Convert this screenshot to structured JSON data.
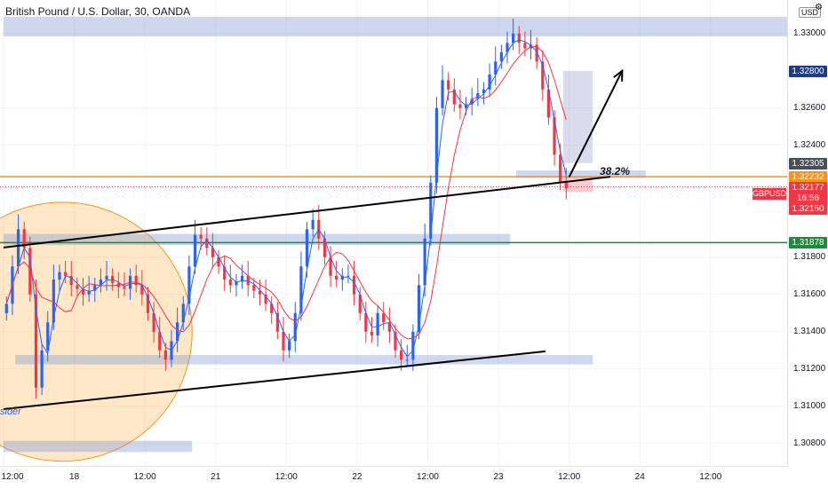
{
  "chart_data": {
    "type": "candlestick",
    "title": "British Pound / U.S. Dollar, 30, OANDA",
    "symbol": "GBPUSD",
    "currency": "USD",
    "price_axis": {
      "ylim": [
        1.3068,
        1.3318
      ],
      "ticks": [
        "1.33000",
        "1.32600",
        "1.32400",
        "1.31800",
        "1.31600",
        "1.31400",
        "1.31200",
        "1.31000",
        "1.30800"
      ]
    },
    "time_axis": {
      "ticks": [
        {
          "label": "12:00",
          "t": 0
        },
        {
          "label": "18",
          "t": 12
        },
        {
          "label": "12:00",
          "t": 24
        },
        {
          "label": "21",
          "t": 36
        },
        {
          "label": "12:00",
          "t": 48
        },
        {
          "label": "22",
          "t": 60
        },
        {
          "label": "12:00",
          "t": 72
        },
        {
          "label": "23",
          "t": 84
        },
        {
          "label": "12:00",
          "t": 96
        },
        {
          "label": "24",
          "t": 108
        },
        {
          "label": "12:00",
          "t": 120
        }
      ],
      "xlim": [
        0,
        133
      ]
    },
    "price_labels": [
      {
        "text": "1.32800",
        "price": 1.328,
        "color": "#1e3a8a"
      },
      {
        "text": "1.32305",
        "price": 1.32305,
        "color": "#4a4e59"
      },
      {
        "text": "1.32232",
        "price": 1.32232,
        "color": "#f7931a"
      },
      {
        "text": "1.32177",
        "price": 1.32177,
        "color": "#f23645"
      },
      {
        "text": "16:56",
        "price": 1.32118,
        "color": "#f23645"
      },
      {
        "text": "1.32150",
        "price": 1.3206,
        "color": "#f23645"
      },
      {
        "text": "1.31878",
        "price": 1.31878,
        "color": "#1e8a3a"
      }
    ],
    "fib_label": "38.2%",
    "note": "sider",
    "close": [
      1.3155,
      1.3175,
      1.3195,
      1.3185,
      1.316,
      1.311,
      1.313,
      1.3145,
      1.3168,
      1.3172,
      1.317,
      1.3165,
      1.3163,
      1.316,
      1.3162,
      1.3165,
      1.3168,
      1.317,
      1.3166,
      1.3164,
      1.3163,
      1.317,
      1.3165,
      1.316,
      1.315,
      1.314,
      1.313,
      1.3125,
      1.3135,
      1.3145,
      1.3155,
      1.3175,
      1.3192,
      1.319,
      1.3185,
      1.318,
      1.3175,
      1.3168,
      1.3165,
      1.3167,
      1.317,
      1.3165,
      1.3162,
      1.316,
      1.3155,
      1.315,
      1.314,
      1.313,
      1.3135,
      1.315,
      1.3175,
      1.3195,
      1.32,
      1.319,
      1.318,
      1.317,
      1.3168,
      1.317,
      1.317,
      1.316,
      1.315,
      1.314,
      1.3138,
      1.315,
      1.3145,
      1.314,
      1.313,
      1.3125,
      1.3125,
      1.314,
      1.3165,
      1.319,
      1.322,
      1.326,
      1.3275,
      1.327,
      1.3262,
      1.326,
      1.3262,
      1.3265,
      1.3268,
      1.327,
      1.3278,
      1.3285,
      1.329,
      1.3295,
      1.33,
      1.3295,
      1.3292,
      1.3294,
      1.3285,
      1.327,
      1.3255,
      1.3235,
      1.322,
      1.3217
    ],
    "bands": [
      {
        "from": 1.32985,
        "to": 1.3309,
        "t0": 0,
        "t1": 133
      },
      {
        "from": 1.31865,
        "to": 1.31925,
        "t0": 0,
        "t1": 86
      },
      {
        "from": 1.31225,
        "to": 1.31275,
        "t0": 2,
        "t1": 100
      },
      {
        "from": 1.30755,
        "to": 1.30815,
        "t0": 0,
        "t1": 32
      },
      {
        "from": 1.32225,
        "to": 1.32265,
        "t0": 87,
        "t1": 109
      }
    ],
    "hlines": [
      {
        "price": 1.32232,
        "color": "#f7931a"
      },
      {
        "price": 1.31878,
        "color": "#1e8a3a"
      }
    ],
    "trendlines": [
      {
        "t0": 0,
        "p0": 1.31852,
        "t1": 103,
        "p1": 1.32232
      },
      {
        "t0": 0,
        "p0": 1.30985,
        "t1": 92,
        "p1": 1.31295
      }
    ],
    "arrow": {
      "t0": 96,
      "p0": 1.3223,
      "t1": 105,
      "p1": 1.328
    },
    "projection_box": {
      "t0": 95,
      "t1": 100,
      "from": 1.32305,
      "to": 1.328
    },
    "loss_box": {
      "t0": 95,
      "t1": 100,
      "from": 1.3215,
      "to": 1.32232
    },
    "circle": {
      "t": 10,
      "p": 1.314,
      "r_t": 22
    }
  }
}
